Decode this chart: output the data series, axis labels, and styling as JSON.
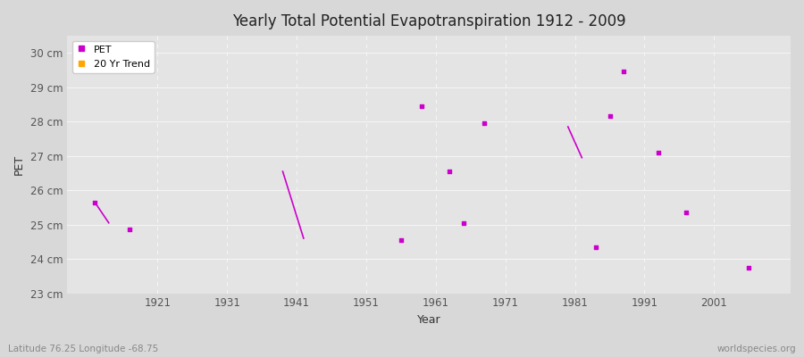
{
  "title": "Yearly Total Potential Evapotranspiration 1912 - 2009",
  "xlabel": "Year",
  "ylabel": "PET",
  "xlim": [
    1908,
    2012
  ],
  "ylim": [
    23,
    30.5
  ],
  "yticks": [
    23,
    24,
    25,
    26,
    27,
    28,
    29,
    30
  ],
  "ytick_labels": [
    "23 cm",
    "24 cm",
    "25 cm",
    "26 cm",
    "27 cm",
    "28 cm",
    "29 cm",
    "30 cm"
  ],
  "xtick_positions": [
    1921,
    1931,
    1941,
    1951,
    1961,
    1971,
    1981,
    1991,
    2001
  ],
  "xtick_labels": [
    "1921",
    "1931",
    "1941",
    "1951",
    "1961",
    "1971",
    "1981",
    "1991",
    "2001"
  ],
  "bg_color": "#d8d8d8",
  "plot_bg_color": "#e4e4e4",
  "grid_color": "#f5f5f5",
  "pet_color": "#cc00cc",
  "trend_color": "#ffa500",
  "pet_points_x": [
    1912,
    1917,
    1956,
    1959,
    1963,
    1965,
    1968,
    1984,
    1986,
    1988,
    1993,
    1997,
    2006
  ],
  "pet_points_y": [
    25.65,
    24.85,
    24.55,
    28.45,
    26.55,
    25.05,
    27.95,
    24.35,
    28.15,
    29.45,
    27.1,
    25.35,
    23.75
  ],
  "trend_lines": [
    {
      "x": [
        1912,
        1914
      ],
      "y": [
        25.65,
        25.05
      ]
    },
    {
      "x": [
        1939,
        1942
      ],
      "y": [
        26.55,
        24.6
      ]
    },
    {
      "x": [
        1980,
        1982
      ],
      "y": [
        27.85,
        26.95
      ]
    }
  ],
  "subtitle_left": "Latitude 76.25 Longitude -68.75",
  "subtitle_right": "worldspecies.org",
  "legend_pet_label": "PET",
  "legend_trend_label": "20 Yr Trend"
}
